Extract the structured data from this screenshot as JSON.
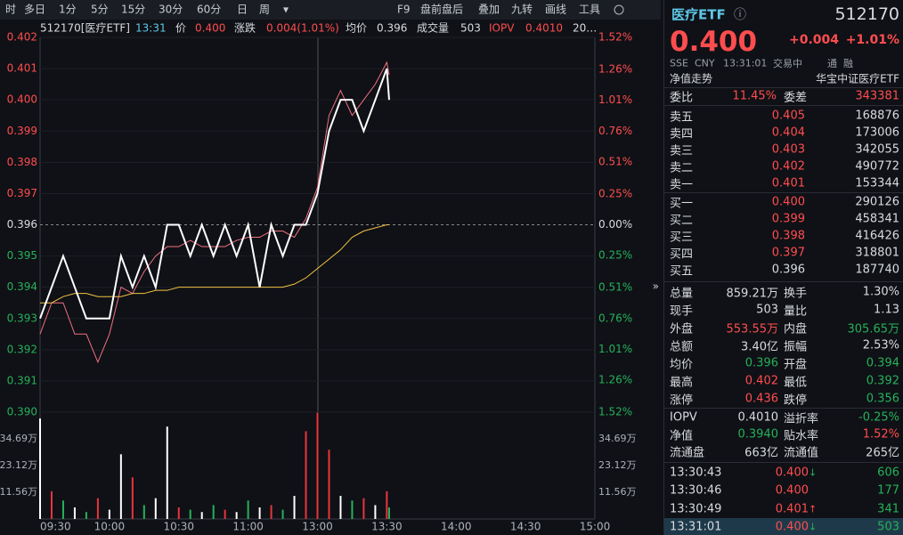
{
  "toolbar": {
    "left": [
      "时",
      "多日",
      "1分",
      "5分",
      "15分",
      "30分",
      "60分",
      "日",
      "周"
    ],
    "right": [
      "F9",
      "盘前盘后",
      "叠加",
      "九转",
      "画线",
      "工具"
    ]
  },
  "info": [
    "512170[医疗ETF]",
    "13:31",
    "价",
    "0.400",
    "涨跌",
    "0.004(1.01%)",
    "均价",
    "0.396",
    "成交量",
    "503",
    "IOPV",
    "0.4010",
    "20…"
  ],
  "chart_data": [
    {
      "type": "line",
      "x": [
        0,
        5,
        10,
        15,
        20,
        25,
        30,
        35,
        40,
        45,
        50,
        55,
        60,
        65,
        70,
        75,
        80,
        85,
        90,
        95,
        100,
        105,
        110,
        115,
        120,
        125,
        130,
        135,
        140,
        145,
        150,
        151
      ],
      "xlim": [
        0,
        240
      ],
      "xticks": [
        {
          "value": 0,
          "label": "09:30"
        },
        {
          "value": 30,
          "label": "10:00"
        },
        {
          "value": 60,
          "label": "10:30"
        },
        {
          "value": 90,
          "label": "11:00"
        },
        {
          "value": 120,
          "label": "13:00"
        },
        {
          "value": 150,
          "label": "13:30"
        },
        {
          "value": 180,
          "label": "14:00"
        },
        {
          "value": 210,
          "label": "14:30"
        },
        {
          "value": 240,
          "label": "15:00"
        }
      ],
      "ylim": [
        0.39,
        0.402
      ],
      "yticks": [
        0.402,
        0.401,
        {
          "value": 0.4,
          "label": "0.400"
        },
        0.399,
        0.398,
        0.397,
        0.396,
        0.395,
        0.394,
        0.393,
        0.392,
        0.391,
        {
          "value": 0.39,
          "label": "0.390"
        }
      ],
      "y2lim": [
        -1.52,
        1.52
      ],
      "y2ticks": [
        {
          "value": 1.52,
          "label": "1.52%"
        },
        {
          "value": 1.26,
          "label": "1.26%"
        },
        {
          "value": 1.01,
          "label": "1.01%"
        },
        {
          "value": 0.76,
          "label": "0.76%"
        },
        {
          "value": 0.51,
          "label": "0.51%"
        },
        {
          "value": 0.25,
          "label": "0.25%"
        },
        {
          "value": 0,
          "label": "0.00%"
        },
        {
          "value": -0.25,
          "label": "0.25%"
        },
        {
          "value": -0.51,
          "label": "0.51%"
        },
        {
          "value": -0.76,
          "label": "0.76%"
        },
        {
          "value": -1.01,
          "label": "1.01%"
        },
        {
          "value": -1.26,
          "label": "1.26%"
        },
        {
          "value": -1.52,
          "label": "1.52%"
        }
      ],
      "grid": true,
      "series": [
        {
          "color": "#f07080",
          "values": [
            0.3925,
            0.3935,
            0.3935,
            0.3925,
            0.3925,
            0.3916,
            0.3925,
            0.394,
            0.3938,
            0.3945,
            0.395,
            0.3953,
            0.3953,
            0.3955,
            0.3953,
            0.3953,
            0.3953,
            0.3955,
            0.3956,
            0.3956,
            0.3958,
            0.3958,
            0.3956,
            0.3962,
            0.3972,
            0.3995,
            0.4003,
            0.3995,
            0.4,
            0.4005,
            0.4012,
            0.4008
          ]
        },
        {
          "color": "#f5c342",
          "values": [
            0.3935,
            0.3935,
            0.3937,
            0.3938,
            0.3938,
            0.3937,
            0.3937,
            0.3937,
            0.3938,
            0.3938,
            0.3939,
            0.3939,
            0.394,
            0.394,
            0.394,
            0.394,
            0.394,
            0.394,
            0.394,
            0.394,
            0.394,
            0.394,
            0.3941,
            0.3943,
            0.3946,
            0.3949,
            0.3952,
            0.3956,
            0.3958,
            0.3959,
            0.396,
            0.396
          ]
        },
        {
          "color": "#ffffff",
          "values": [
            0.393,
            0.394,
            0.395,
            0.394,
            0.393,
            0.393,
            0.393,
            0.395,
            0.394,
            0.395,
            0.394,
            0.396,
            0.396,
            0.395,
            0.396,
            0.395,
            0.396,
            0.395,
            0.396,
            0.394,
            0.396,
            0.395,
            0.396,
            0.396,
            0.397,
            0.399,
            0.4,
            0.4,
            0.399,
            0.4,
            0.401,
            0.4
          ]
        }
      ]
    },
    {
      "type": "bar",
      "x": [
        0,
        5,
        10,
        15,
        20,
        25,
        30,
        35,
        40,
        45,
        50,
        55,
        60,
        65,
        70,
        75,
        80,
        85,
        90,
        95,
        100,
        105,
        110,
        115,
        120,
        125,
        130,
        135,
        140,
        145,
        150,
        151
      ],
      "xlim": [
        0,
        240
      ],
      "ylim": [
        0,
        46.25
      ],
      "yticks": [
        {
          "value": 34.69,
          "label": "34.69万"
        },
        {
          "value": 23.12,
          "label": "23.12万"
        },
        {
          "value": 11.56,
          "label": "11.56万"
        }
      ],
      "values": [
        43.5,
        12,
        8,
        5,
        3,
        9,
        4,
        28,
        18,
        6,
        9,
        40,
        5,
        4,
        3,
        6,
        4,
        3,
        8,
        5,
        6,
        4,
        10,
        38,
        46,
        30,
        10,
        8,
        9,
        6,
        12,
        5
      ],
      "colors": [
        "#ffffff",
        "#e8353b",
        "#26b15a",
        "#ffffff",
        "#26b15a",
        "#e8353b",
        "#ffffff",
        "#ffffff",
        "#e8353b",
        "#26b15a",
        "#ffffff",
        "#ffffff",
        "#e8353b",
        "#26b15a",
        "#ffffff",
        "#26b15a",
        "#e8353b",
        "#ffffff",
        "#26b15a",
        "#ffffff",
        "#e8353b",
        "#26b15a",
        "#ffffff",
        "#e8353b",
        "#e8353b",
        "#e8353b",
        "#ffffff",
        "#26b15a",
        "#e8353b",
        "#ffffff",
        "#e8353b",
        "#26b15a"
      ]
    }
  ],
  "panel": {
    "name": "医疗ETF",
    "code": "512170",
    "price": "0.400",
    "change": "+0.004",
    "pct": "+1.01%",
    "sub": [
      "SSE",
      "CNY",
      "13:31:01",
      "交易中",
      "通",
      "融"
    ],
    "nav_link": "净值走势",
    "fund_name": "华宝中证医疗ETF",
    "ratio": [
      "委比",
      "11.45%",
      "委差",
      "343381"
    ],
    "sells": [
      [
        "卖五",
        "0.405",
        "168876"
      ],
      [
        "卖四",
        "0.404",
        "173006"
      ],
      [
        "卖三",
        "0.403",
        "342055"
      ],
      [
        "卖二",
        "0.402",
        "490772"
      ],
      [
        "卖一",
        "0.401",
        "153344"
      ]
    ],
    "buys": [
      [
        "买一",
        "0.400",
        "290126"
      ],
      [
        "买二",
        "0.399",
        "458341"
      ],
      [
        "买三",
        "0.398",
        "416426"
      ],
      [
        "买四",
        "0.397",
        "318801"
      ],
      [
        "买五",
        "0.396",
        "187740"
      ]
    ],
    "stats": [
      [
        "总量",
        "859.21万",
        "换手",
        "1.30%"
      ],
      [
        "现手",
        "503",
        "量比",
        "1.13"
      ],
      [
        "外盘",
        "553.55万",
        "内盘",
        "305.65万"
      ],
      [
        "总额",
        "3.40亿",
        "振幅",
        "2.53%"
      ],
      [
        "均价",
        "0.396",
        "开盘",
        "0.394"
      ],
      [
        "最高",
        "0.402",
        "最低",
        "0.392"
      ],
      [
        "涨停",
        "0.436",
        "跌停",
        "0.356"
      ]
    ],
    "fund": [
      [
        "IOPV",
        "0.4010",
        "溢折率",
        "-0.25%"
      ],
      [
        "净值",
        "0.3940",
        "贴水率",
        "1.52%"
      ],
      [
        "流通盘",
        "663亿",
        "流通值",
        "265亿"
      ]
    ],
    "trades": [
      {
        "time": "13:30:43",
        "price": "0.400",
        "arrow": "↓",
        "vol": "606"
      },
      {
        "time": "13:30:46",
        "price": "0.400",
        "vol": "177"
      },
      {
        "time": "13:30:49",
        "price": "0.401",
        "arrow": "↑",
        "vol": "341"
      },
      {
        "time": "13:31:01",
        "price": "0.400",
        "arrow": "↓",
        "vol": "503"
      }
    ]
  }
}
